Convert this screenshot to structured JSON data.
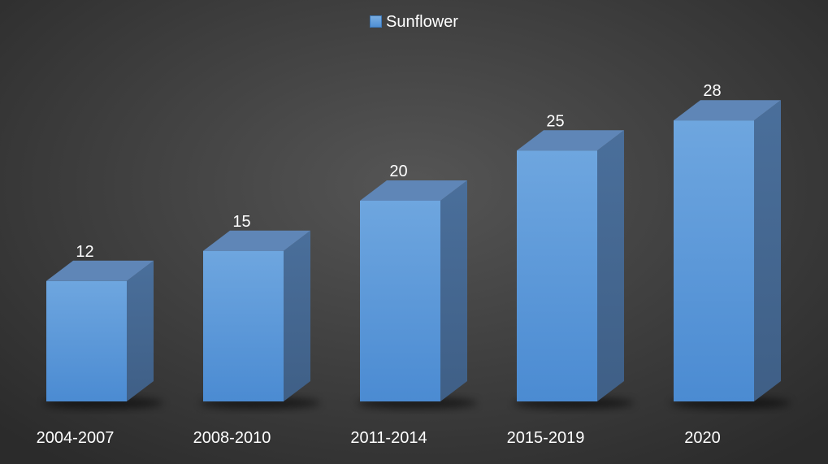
{
  "chart_data": {
    "type": "bar",
    "categories": [
      "2004-2007",
      "2008-2010",
      "2011-2014",
      "2015-2019",
      "2020"
    ],
    "series": [
      {
        "name": "Sunflower",
        "values": [
          12,
          15,
          20,
          25,
          28
        ]
      }
    ],
    "legend": {
      "position": "top",
      "label": "Sunflower"
    },
    "ylim": [
      0,
      28
    ],
    "grid": false,
    "data_labels": true,
    "style": "3d-column"
  },
  "colors": {
    "bar_front_top": "#6ea6df",
    "bar_front_bottom": "#4b8bd2",
    "bar_top": "#5f86b7",
    "bar_side": "#3f5f86",
    "label_text": "#ffffff"
  }
}
